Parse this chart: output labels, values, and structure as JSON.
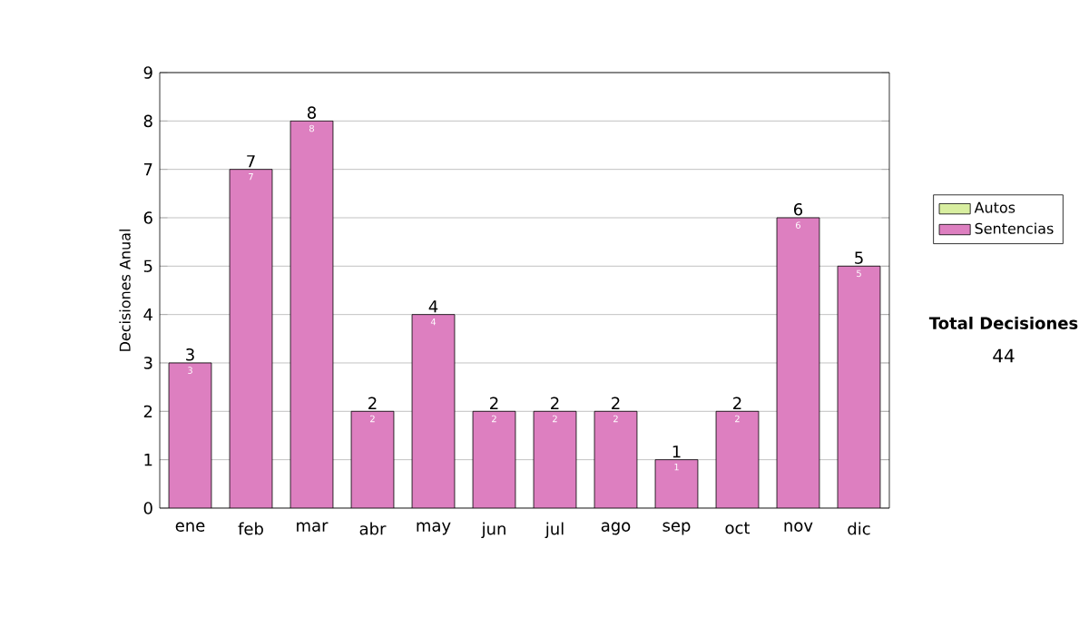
{
  "chart_data": {
    "type": "bar",
    "stacked": true,
    "ylabel": "Decisiones Anual",
    "categories": [
      "ene",
      "feb",
      "mar",
      "abr",
      "may",
      "jun",
      "jul",
      "ago",
      "sep",
      "oct",
      "nov",
      "dic"
    ],
    "series": [
      {
        "name": "Sentencias",
        "color": "#dd7fc0",
        "values": [
          3,
          7,
          8,
          2,
          4,
          2,
          2,
          2,
          1,
          2,
          6,
          5
        ]
      },
      {
        "name": "Autos",
        "color": "#d8eea0",
        "values": [
          null,
          null,
          null,
          null,
          null,
          null,
          null,
          null,
          null,
          null,
          null,
          null
        ]
      }
    ],
    "data_labels": true,
    "totals": [
      "3",
      "7",
      "8",
      "2",
      "4",
      "2",
      "2",
      "2",
      "1",
      "2",
      "6",
      "5"
    ],
    "ylim": [
      0,
      9
    ],
    "yticks": [
      0,
      1,
      2,
      3,
      4,
      5,
      6,
      7,
      8,
      9
    ],
    "grid": "y",
    "legend": "right",
    "annotations": [
      "Total Decisiones",
      "44"
    ]
  }
}
